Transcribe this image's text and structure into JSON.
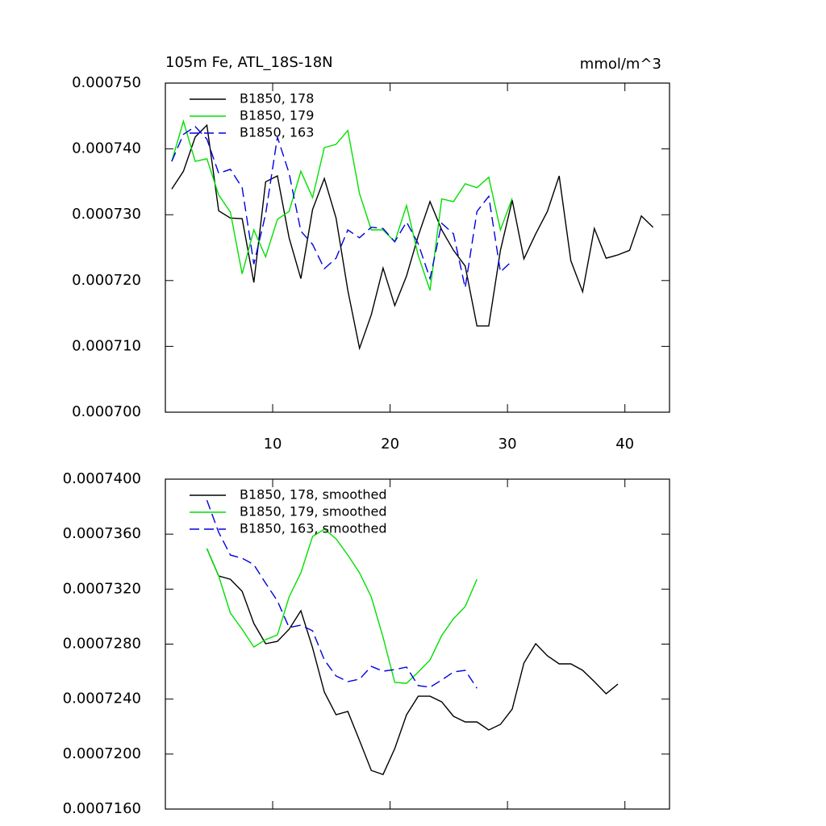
{
  "chart_data": [
    {
      "type": "line",
      "title": "105m Fe, ATL_18S-18N",
      "units": "mmol/m^3",
      "xlim": [
        0.86,
        43.8
      ],
      "xticks": [
        10,
        20,
        30,
        40
      ],
      "show_xtick_labels": true,
      "ylim": [
        0.0007,
        0.00075
      ],
      "yticks": [
        {
          "value": 0.0007,
          "label": "0.000700"
        },
        {
          "value": 0.00071,
          "label": "0.000710"
        },
        {
          "value": 0.00072,
          "label": "0.000720"
        },
        {
          "value": 0.00073,
          "label": "0.000730"
        },
        {
          "value": 0.00074,
          "label": "0.000740"
        },
        {
          "value": 0.00075,
          "label": "0.000750"
        }
      ],
      "legend": "upper left",
      "series": [
        {
          "name": "B1850, 178",
          "color": "#000000",
          "line_style": "solid",
          "x": [
            1.4,
            2.4,
            3.4,
            4.4,
            5.4,
            6.4,
            7.4,
            8.4,
            9.4,
            10.4,
            11.4,
            12.4,
            13.4,
            14.4,
            15.4,
            16.4,
            17.4,
            18.4,
            19.4,
            20.4,
            21.4,
            22.4,
            23.4,
            24.4,
            25.4,
            26.4,
            27.4,
            28.4,
            29.4,
            30.4,
            31.4,
            32.4,
            33.4,
            34.4,
            35.4,
            36.4,
            37.4,
            38.4,
            39.4,
            40.4,
            41.4,
            42.4
          ],
          "values": [
            0.0007339,
            0.0007366,
            0.0007418,
            0.0007436,
            0.0007306,
            0.0007295,
            0.0007294,
            0.0007197,
            0.000735,
            0.0007359,
            0.0007265,
            0.0007203,
            0.0007308,
            0.0007355,
            0.0007295,
            0.0007185,
            0.0007097,
            0.0007148,
            0.0007219,
            0.0007162,
            0.0007207,
            0.0007268,
            0.000732,
            0.0007277,
            0.0007246,
            0.0007222,
            0.0007131,
            0.0007131,
            0.0007246,
            0.0007322,
            0.0007233,
            0.0007271,
            0.0007305,
            0.0007359,
            0.000723,
            0.0007183,
            0.0007279,
            0.0007234,
            0.0007239,
            0.0007246,
            0.0007298,
            0.0007281
          ]
        },
        {
          "name": "B1850, 179",
          "color": "#00e000",
          "line_style": "solid",
          "x": [
            1.4,
            2.4,
            3.4,
            4.4,
            5.4,
            6.4,
            7.4,
            8.4,
            9.4,
            10.4,
            11.4,
            12.4,
            13.4,
            14.4,
            15.4,
            16.4,
            17.4,
            18.4,
            19.4,
            20.4,
            21.4,
            22.4,
            23.4,
            24.4,
            25.4,
            26.4,
            27.4,
            28.4,
            29.4,
            30.4
          ],
          "values": [
            0.0007381,
            0.0007442,
            0.0007381,
            0.0007385,
            0.000733,
            0.0007304,
            0.000721,
            0.0007277,
            0.0007236,
            0.0007293,
            0.0007305,
            0.0007366,
            0.0007326,
            0.0007402,
            0.0007407,
            0.0007428,
            0.0007332,
            0.0007277,
            0.0007277,
            0.0007259,
            0.0007314,
            0.0007238,
            0.0007185,
            0.0007324,
            0.000732,
            0.0007347,
            0.0007341,
            0.0007357,
            0.0007277,
            0.0007325
          ]
        },
        {
          "name": "B1850, 163",
          "color": "#0000e0",
          "line_style": "dashed",
          "x": [
            1.4,
            2.4,
            3.4,
            4.4,
            5.4,
            6.4,
            7.4,
            8.4,
            9.4,
            10.4,
            11.4,
            12.4,
            13.4,
            14.4,
            15.4,
            16.4,
            17.4,
            18.4,
            19.4,
            20.4,
            21.4,
            22.4,
            23.4,
            24.4,
            25.4,
            26.4,
            27.4,
            28.4,
            29.4,
            30.4
          ],
          "values": [
            0.0007381,
            0.0007422,
            0.0007434,
            0.0007415,
            0.0007363,
            0.0007369,
            0.0007341,
            0.0007225,
            0.0007301,
            0.0007418,
            0.0007363,
            0.0007275,
            0.0007255,
            0.0007218,
            0.0007234,
            0.0007277,
            0.0007265,
            0.0007281,
            0.0007279,
            0.0007259,
            0.0007289,
            0.0007256,
            0.0007203,
            0.0007287,
            0.0007271,
            0.0007189,
            0.0007305,
            0.0007328,
            0.0007213,
            0.000723
          ]
        }
      ]
    },
    {
      "type": "line",
      "xlim": [
        0.86,
        43.8
      ],
      "xticks": [
        10,
        20,
        30,
        40
      ],
      "show_xtick_labels": false,
      "ylim": [
        0.000716,
        0.00074
      ],
      "yticks": [
        {
          "value": 0.000716,
          "label": "0.0007160"
        },
        {
          "value": 0.00072,
          "label": "0.0007200"
        },
        {
          "value": 0.000724,
          "label": "0.0007240"
        },
        {
          "value": 0.000728,
          "label": "0.0007280"
        },
        {
          "value": 0.000732,
          "label": "0.0007320"
        },
        {
          "value": 0.000736,
          "label": "0.0007360"
        },
        {
          "value": 0.00074,
          "label": "0.0007400"
        }
      ],
      "legend": "upper left",
      "series": [
        {
          "name": "B1850, 178, smoothed",
          "color": "#000000",
          "line_style": "solid",
          "x": [
            4.4,
            5.4,
            6.4,
            7.4,
            8.4,
            9.4,
            10.4,
            11.4,
            12.4,
            13.4,
            14.4,
            15.4,
            16.4,
            17.4,
            18.4,
            19.4,
            20.4,
            21.4,
            22.4,
            23.4,
            24.4,
            25.4,
            26.4,
            27.4,
            28.4,
            29.4,
            30.4,
            31.4,
            32.4,
            33.4,
            34.4,
            35.4,
            36.4,
            37.4,
            38.4,
            39.4
          ],
          "values": [
            0.00073495,
            0.00073296,
            0.00073272,
            0.00073184,
            0.0007295,
            0.00072803,
            0.0007282,
            0.00072908,
            0.00073043,
            0.00072773,
            0.00072451,
            0.00072286,
            0.0007231,
            0.00072099,
            0.00071881,
            0.00071852,
            0.0007204,
            0.00072286,
            0.00072421,
            0.00072421,
            0.0007238,
            0.00072275,
            0.00072234,
            0.00072234,
            0.00072175,
            0.00072216,
            0.00072327,
            0.00072662,
            0.00072803,
            0.00072715,
            0.00072656,
            0.00072656,
            0.00072609,
            0.00072527,
            0.00072439,
            0.00072509
          ]
        },
        {
          "name": "B1850, 179, smoothed",
          "color": "#00e000",
          "line_style": "solid",
          "x": [
            4.4,
            5.4,
            6.4,
            7.4,
            8.4,
            9.4,
            10.4,
            11.4,
            12.4,
            13.4,
            14.4,
            15.4,
            16.4,
            17.4,
            18.4,
            19.4,
            20.4,
            21.4,
            22.4,
            23.4,
            24.4,
            25.4,
            26.4,
            27.4
          ],
          "values": [
            0.00073495,
            0.00073296,
            0.00073026,
            0.00072908,
            0.00072779,
            0.00072832,
            0.00072867,
            0.00073143,
            0.00073319,
            0.00073583,
            0.00073636,
            0.00073566,
            0.00073448,
            0.00073319,
            0.00073143,
            0.0007285,
            0.00072521,
            0.00072515,
            0.00072597,
            0.00072685,
            0.00072862,
            0.00072985,
            0.00073073,
            0.00073272
          ]
        },
        {
          "name": "B1850, 163, smoothed",
          "color": "#0000e0",
          "line_style": "dashed",
          "x": [
            4.4,
            5.4,
            6.4,
            7.4,
            8.4,
            9.4,
            10.4,
            11.4,
            12.4,
            13.4,
            14.4,
            15.4,
            16.4,
            17.4,
            18.4,
            19.4,
            20.4,
            21.4,
            22.4,
            23.4,
            24.4,
            25.4,
            26.4,
            27.4
          ],
          "values": [
            0.00073847,
            0.00073613,
            0.00073448,
            0.00073425,
            0.00073378,
            0.00073243,
            0.00073114,
            0.0007292,
            0.00072938,
            0.00072897,
            0.00072685,
            0.00072568,
            0.00072527,
            0.00072545,
            0.00072638,
            0.00072603,
            0.00072615,
            0.00072633,
            0.00072498,
            0.00072486,
            0.00072539,
            0.00072597,
            0.00072609,
            0.00072479
          ]
        }
      ]
    }
  ]
}
